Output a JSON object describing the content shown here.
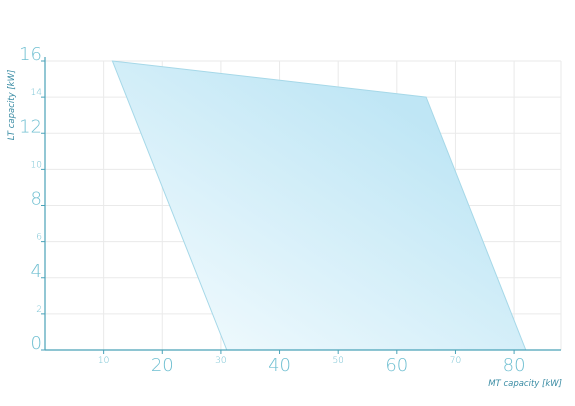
{
  "chart_data": {
    "type": "area",
    "xlabel": "MT capacity [kW]",
    "ylabel": "LT capacity [kW]",
    "xlim": [
      0,
      88
    ],
    "ylim": [
      0,
      16
    ],
    "grid": true,
    "x_ticks": [
      {
        "value": 10,
        "label": "10",
        "major": false
      },
      {
        "value": 20,
        "label": "20",
        "major": true
      },
      {
        "value": 30,
        "label": "30",
        "major": false
      },
      {
        "value": 40,
        "label": "40",
        "major": true
      },
      {
        "value": 50,
        "label": "50",
        "major": false
      },
      {
        "value": 60,
        "label": "60",
        "major": true
      },
      {
        "value": 70,
        "label": "70",
        "major": false
      },
      {
        "value": 80,
        "label": "80",
        "major": true
      }
    ],
    "y_ticks": [
      {
        "value": 0,
        "label": "0",
        "major": true
      },
      {
        "value": 2,
        "label": "2",
        "major": false
      },
      {
        "value": 4,
        "label": "4",
        "major": true
      },
      {
        "value": 6,
        "label": "6",
        "major": false
      },
      {
        "value": 8,
        "label": "8",
        "major": true
      },
      {
        "value": 10,
        "label": "10",
        "major": false
      },
      {
        "value": 12,
        "label": "12",
        "major": true
      },
      {
        "value": 14,
        "label": "14",
        "major": false
      },
      {
        "value": 16,
        "label": "16",
        "major": true
      }
    ],
    "region": [
      {
        "x": 11.5,
        "y": 16
      },
      {
        "x": 65,
        "y": 14
      },
      {
        "x": 82,
        "y": 0
      },
      {
        "x": 31,
        "y": 0
      }
    ],
    "colors": {
      "fill_dark": "#bfe6f5",
      "fill_light": "#f3fbfe",
      "stroke": "#a6d8e8",
      "axis": "#4aa2b8",
      "tick_text": "#6fbfd1",
      "grid": "#eaeaea"
    }
  }
}
